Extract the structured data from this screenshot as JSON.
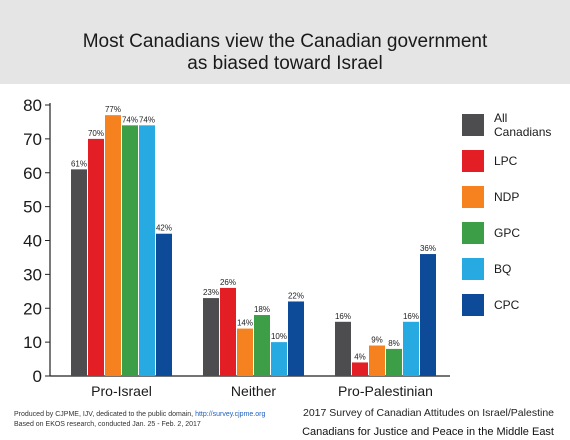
{
  "chart_data": {
    "type": "bar",
    "title": "Most Canadians view the Canadian government",
    "title_line2": "as biased toward Israel",
    "categories": [
      "Pro-Israel",
      "Neither",
      "Pro-Palestinian"
    ],
    "ylim": [
      0,
      80
    ],
    "yticks": [
      "0",
      "10",
      "20",
      "30",
      "40",
      "50",
      "60",
      "70",
      "80"
    ],
    "grid": false,
    "legend_position": "right",
    "series": [
      {
        "name": "All Canadians",
        "legend_lines": [
          "All",
          "Canadians"
        ],
        "color": "#4d4d4f",
        "values": [
          61,
          23,
          16
        ],
        "labels": [
          "61%",
          "23%",
          "16%"
        ]
      },
      {
        "name": "LPC",
        "legend_lines": [
          "LPC"
        ],
        "color": "#e31e25",
        "values": [
          70,
          26,
          4
        ],
        "labels": [
          "70%",
          "26%",
          "4%"
        ]
      },
      {
        "name": "NDP",
        "legend_lines": [
          "NDP"
        ],
        "color": "#f5821f",
        "values": [
          77,
          14,
          9
        ],
        "labels": [
          "77%",
          "14%",
          "9%"
        ]
      },
      {
        "name": "GPC",
        "legend_lines": [
          "GPC"
        ],
        "color": "#3d9e48",
        "values": [
          74,
          18,
          8
        ],
        "labels": [
          "74%",
          "18%",
          "8%"
        ]
      },
      {
        "name": "BQ",
        "legend_lines": [
          "BQ"
        ],
        "color": "#27a9e1",
        "values": [
          74,
          10,
          16
        ],
        "labels": [
          "74%",
          "10%",
          "16%"
        ]
      },
      {
        "name": "CPC",
        "legend_lines": [
          "CPC"
        ],
        "color": "#0d4a97",
        "values": [
          42,
          22,
          36
        ],
        "labels": [
          "42%",
          "22%",
          "36%"
        ]
      }
    ]
  },
  "footer": {
    "left_line1_prefix": "Produced by CJPME, IJV, dedicated to the public domain, ",
    "left_line1_link": "http://survey.cjpme.org",
    "left_line2": "Based on EKOS research, conducted Jan. 25 - Feb. 2, 2017",
    "right_line1": "2017 Survey of Canadian Attitudes on Israel/Palestine",
    "right_line2": "Canadians for Justice and Peace in the Middle East"
  }
}
